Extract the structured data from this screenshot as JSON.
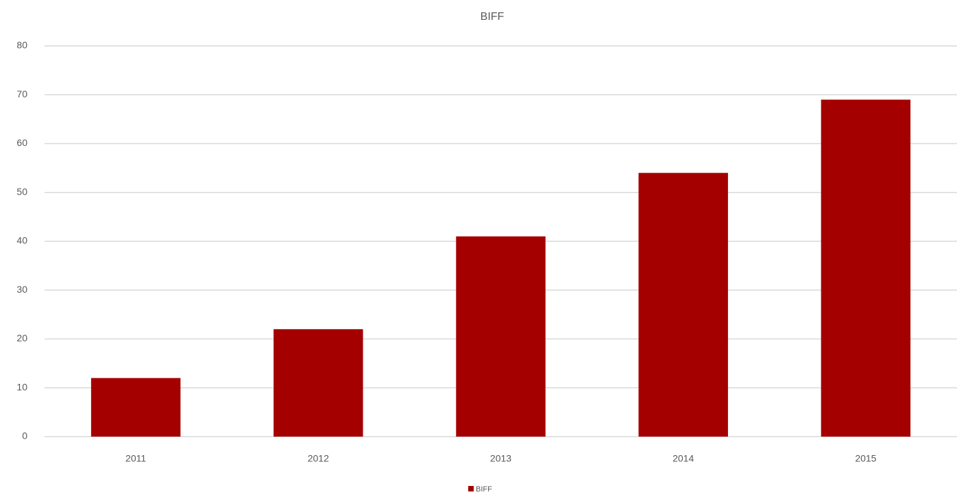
{
  "chart_data": {
    "type": "bar",
    "title": "BIFF",
    "categories": [
      "2011",
      "2012",
      "2013",
      "2014",
      "2015"
    ],
    "series": [
      {
        "name": "BIFF",
        "color": "#a50000",
        "values": [
          12,
          22,
          41,
          54,
          69
        ]
      }
    ],
    "ylim": [
      0,
      80
    ],
    "yticks": [
      0,
      10,
      20,
      30,
      40,
      50,
      60,
      70,
      80
    ],
    "grid": true,
    "legend": "bottom"
  }
}
